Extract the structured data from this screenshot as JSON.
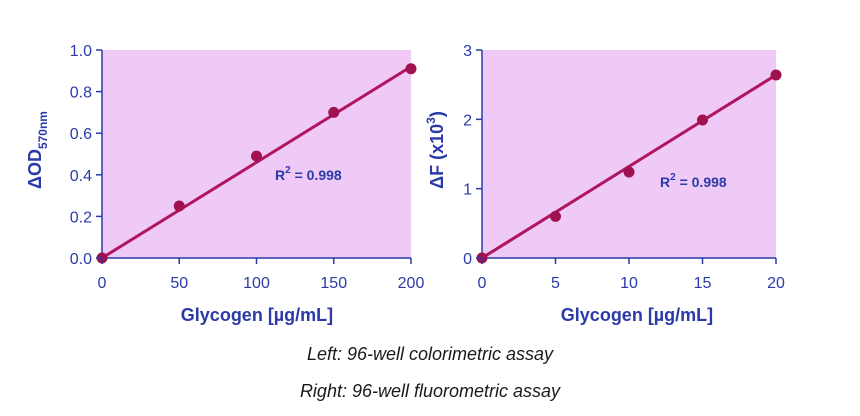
{
  "chart_data": [
    {
      "type": "scatter",
      "xlabel": "Glycogen [µg/mL]",
      "ylabel_main": "ΔOD",
      "ylabel_sub": "570nm",
      "xlim": [
        0,
        200
      ],
      "ylim": [
        0,
        1.0
      ],
      "xticks": [
        "0",
        "50",
        "100",
        "150",
        "200"
      ],
      "yticks": [
        "0.0",
        "0.2",
        "0.4",
        "0.6",
        "0.8",
        "1.0"
      ],
      "points": [
        {
          "x": 0,
          "y": 0.0
        },
        {
          "x": 50,
          "y": 0.25
        },
        {
          "x": 100,
          "y": 0.49
        },
        {
          "x": 150,
          "y": 0.7
        },
        {
          "x": 200,
          "y": 0.91
        }
      ],
      "fit": {
        "x0": 0,
        "y0": 0.0,
        "x1": 200,
        "y1": 0.92
      },
      "r2_base": "R",
      "r2_sup": "2",
      "r2_value": " = 0.998",
      "grid": false,
      "background_color": "#efcaf6",
      "line_color": "#b0155d",
      "marker_color": "#a0124f",
      "axis_color": "#2b3aa8"
    },
    {
      "type": "scatter",
      "xlabel": "Glycogen [µg/mL]",
      "ylabel_main": "ΔF (x10",
      "ylabel_sup": "3",
      "ylabel_end": ")",
      "xlim": [
        0,
        20
      ],
      "ylim": [
        0,
        3
      ],
      "xticks": [
        "0",
        "5",
        "10",
        "15",
        "20"
      ],
      "yticks": [
        "0",
        "1",
        "2",
        "3"
      ],
      "points": [
        {
          "x": 0,
          "y": 0.0
        },
        {
          "x": 5,
          "y": 0.6
        },
        {
          "x": 10,
          "y": 1.24
        },
        {
          "x": 15,
          "y": 1.99
        },
        {
          "x": 20,
          "y": 2.64
        }
      ],
      "fit": {
        "x0": 0,
        "y0": 0.0,
        "x1": 20,
        "y1": 2.64
      },
      "r2_base": "R",
      "r2_sup": "2",
      "r2_value": " = 0.998",
      "grid": false,
      "background_color": "#efcaf6",
      "line_color": "#b0155d",
      "marker_color": "#a0124f",
      "axis_color": "#2b3aa8"
    }
  ],
  "captions": {
    "left": "Left: 96-well colorimetric assay",
    "right": "Right: 96-well fluorometric assay"
  }
}
